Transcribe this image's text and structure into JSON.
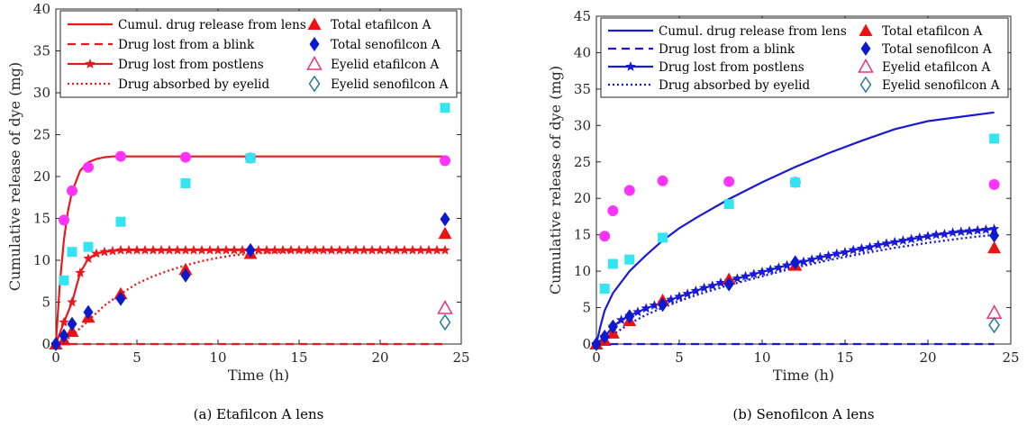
{
  "colors": {
    "eta_model": "#e8191c",
    "seno_model": "#1a1ad6",
    "magenta": "#ff33ff",
    "cyan": "#33e5f0",
    "red_marker": "#ee1111",
    "blue_marker": "#0a1acc",
    "open_pink": "#e8347c",
    "open_teal": "#2a7a94"
  },
  "chart_data": [
    {
      "type": "line",
      "caption": "(a) Etafilcon A lens",
      "xlabel": "Time (h)",
      "ylabel": "Cumulative release of dye (mg)",
      "xlim": [
        0,
        25
      ],
      "ylim": [
        0,
        40
      ],
      "xticks": [
        "0",
        "5",
        "10",
        "15",
        "20",
        "25"
      ],
      "yticks": [
        "0",
        "5",
        "10",
        "15",
        "20",
        "25",
        "30",
        "35",
        "40"
      ],
      "grid": false,
      "legend_position": "top",
      "legend": [
        "Cumul. drug release from lens",
        "Drug lost from a blink",
        "Drug lost from postlens",
        "Drug absorbed by eyelid",
        "Total etafilcon A",
        "Total senofilcon A",
        "Eyelid etafilcon A",
        "Eyelid senofilcon A"
      ],
      "model_series": [
        {
          "name": "Cumul. drug release from lens",
          "style": "solid",
          "x": [
            0,
            0.25,
            0.5,
            0.75,
            1,
            1.5,
            2,
            2.5,
            3,
            3.5,
            4,
            5,
            6,
            8,
            10,
            12,
            16,
            20,
            24
          ],
          "y": [
            0,
            7.3,
            12.5,
            15.9,
            18.2,
            20.7,
            21.7,
            22.1,
            22.3,
            22.4,
            22.4,
            22.4,
            22.4,
            22.4,
            22.4,
            22.4,
            22.4,
            22.4,
            22.4
          ]
        },
        {
          "name": "Drug lost from a blink",
          "style": "dashed",
          "x": [
            0,
            24
          ],
          "y": [
            0,
            0
          ]
        },
        {
          "name": "Drug lost from postlens",
          "style": "star",
          "x": [
            0,
            0.5,
            1,
            1.5,
            2,
            2.5,
            3,
            3.5,
            4,
            4.5,
            5,
            5.5,
            6,
            6.5,
            7,
            7.5,
            8,
            8.5,
            9,
            9.5,
            10,
            10.5,
            11,
            11.5,
            12,
            12.5,
            13,
            13.5,
            14,
            14.5,
            15,
            15.5,
            16,
            16.5,
            17,
            17.5,
            18,
            18.5,
            19,
            19.5,
            20,
            20.5,
            21,
            21.5,
            22,
            22.5,
            23,
            23.5,
            24
          ],
          "y": [
            0,
            2.6,
            5.0,
            8.5,
            10.2,
            10.8,
            11.0,
            11.1,
            11.2,
            11.2,
            11.2,
            11.2,
            11.2,
            11.2,
            11.2,
            11.2,
            11.2,
            11.2,
            11.2,
            11.2,
            11.2,
            11.2,
            11.2,
            11.2,
            11.2,
            11.2,
            11.2,
            11.2,
            11.2,
            11.2,
            11.2,
            11.2,
            11.2,
            11.2,
            11.2,
            11.2,
            11.2,
            11.2,
            11.2,
            11.2,
            11.2,
            11.2,
            11.2,
            11.2,
            11.2,
            11.2,
            11.2,
            11.2,
            11.2
          ]
        },
        {
          "name": "Drug absorbed by eyelid",
          "style": "dotted",
          "x": [
            0,
            0.5,
            1,
            1.5,
            2,
            3,
            4,
            5,
            6,
            7,
            8,
            9,
            10,
            11,
            12,
            14,
            16,
            18,
            20,
            22,
            24
          ],
          "y": [
            0,
            0.3,
            1.0,
            1.9,
            2.8,
            4.6,
            6.0,
            7.2,
            8.1,
            8.8,
            9.4,
            9.9,
            10.3,
            10.6,
            10.8,
            11.0,
            11.1,
            11.2,
            11.2,
            11.2,
            11.2
          ]
        }
      ],
      "markers": [
        {
          "name": "Total etafilcon A",
          "shape": "triangle-filled",
          "x": [
            0,
            0.5,
            1,
            2,
            4,
            8,
            12,
            24
          ],
          "y": [
            0,
            0.5,
            1.5,
            3.2,
            6.0,
            8.9,
            10.8,
            13.2
          ]
        },
        {
          "name": "Total senofilcon A",
          "shape": "diamond-filled",
          "x": [
            0,
            0.5,
            1,
            2,
            4,
            8,
            12,
            24
          ],
          "y": [
            0,
            1.0,
            2.4,
            3.8,
            5.4,
            8.2,
            11.2,
            14.9
          ]
        },
        {
          "name": "Eyelid etafilcon A",
          "shape": "triangle-open",
          "x": [
            24
          ],
          "y": [
            4.3
          ]
        },
        {
          "name": "Eyelid senofilcon A",
          "shape": "diamond-open",
          "x": [
            24
          ],
          "y": [
            2.6
          ]
        },
        {
          "name": "",
          "shape": "circle-filled",
          "color": "magenta",
          "x": [
            0.5,
            1,
            2,
            4,
            8,
            12,
            24
          ],
          "y": [
            14.8,
            18.3,
            21.1,
            22.4,
            22.3,
            22.2,
            21.9
          ]
        },
        {
          "name": "",
          "shape": "square-filled",
          "color": "cyan",
          "x": [
            0.5,
            1,
            2,
            4,
            8,
            12,
            24
          ],
          "y": [
            7.6,
            11.0,
            11.6,
            14.6,
            19.2,
            22.2,
            28.2
          ]
        }
      ]
    },
    {
      "type": "line",
      "caption": "(b) Senofilcon A lens",
      "xlabel": "Time (h)",
      "ylabel": "Cumulative release of dye (mg)",
      "xlim": [
        0,
        25
      ],
      "ylim": [
        0,
        45
      ],
      "xticks": [
        "0",
        "5",
        "10",
        "15",
        "20",
        "25"
      ],
      "yticks": [
        "0",
        "5",
        "10",
        "15",
        "20",
        "25",
        "30",
        "35",
        "40",
        "45"
      ],
      "grid": false,
      "legend_position": "top",
      "legend": [
        "Cumul. drug release from lens",
        "Drug lost from a blink",
        "Drug lost from postlens",
        "Drug absorbed by eyelid",
        "Total etafilcon A",
        "Total senofilcon A",
        "Eyelid etafilcon A",
        "Eyelid senofilcon A"
      ],
      "model_series": [
        {
          "name": "Cumul. drug release from lens",
          "style": "solid",
          "x": [
            0,
            0.25,
            0.5,
            1,
            2,
            3,
            4,
            5,
            6,
            8,
            10,
            12,
            14,
            16,
            18,
            20,
            22,
            24
          ],
          "y": [
            0,
            2.5,
            4.6,
            7.0,
            10.0,
            12.2,
            14.2,
            15.9,
            17.3,
            19.9,
            22.2,
            24.3,
            26.2,
            27.9,
            29.5,
            30.6,
            31.2,
            31.8
          ]
        },
        {
          "name": "Drug lost from a blink",
          "style": "dashed",
          "x": [
            0,
            24
          ],
          "y": [
            0,
            0
          ]
        },
        {
          "name": "Drug lost from postlens",
          "style": "star",
          "x": [
            0,
            0.5,
            1,
            1.5,
            2,
            2.5,
            3,
            3.5,
            4,
            4.5,
            5,
            5.5,
            6,
            6.5,
            7,
            7.5,
            8,
            8.5,
            9,
            9.5,
            10,
            10.5,
            11,
            11.5,
            12,
            12.5,
            13,
            13.5,
            14,
            14.5,
            15,
            15.5,
            16,
            16.5,
            17,
            17.5,
            18,
            18.5,
            19,
            19.5,
            20,
            20.5,
            21,
            21.5,
            22,
            22.5,
            23,
            23.5,
            24
          ],
          "y": [
            0,
            1.0,
            2.4,
            3.3,
            3.9,
            4.4,
            4.9,
            5.3,
            5.7,
            6.1,
            6.5,
            6.9,
            7.3,
            7.7,
            8.0,
            8.4,
            8.7,
            9.0,
            9.3,
            9.6,
            9.9,
            10.2,
            10.5,
            10.8,
            11.1,
            11.3,
            11.6,
            11.9,
            12.1,
            12.4,
            12.6,
            12.9,
            13.1,
            13.3,
            13.6,
            13.8,
            14.0,
            14.2,
            14.4,
            14.6,
            14.8,
            15.0,
            15.1,
            15.3,
            15.4,
            15.5,
            15.6,
            15.7,
            15.8
          ]
        },
        {
          "name": "Drug absorbed by eyelid",
          "style": "dotted",
          "x": [
            0,
            0.5,
            1,
            2,
            3,
            4,
            5,
            6,
            8,
            10,
            12,
            14,
            16,
            18,
            20,
            22,
            24
          ],
          "y": [
            0,
            0.4,
            1.3,
            2.8,
            4.0,
            5.0,
            5.9,
            6.7,
            8.1,
            9.3,
            10.5,
            11.5,
            12.4,
            13.2,
            13.9,
            14.5,
            15.0
          ]
        }
      ],
      "markers": [
        {
          "name": "Total etafilcon A",
          "shape": "triangle-filled",
          "x": [
            0,
            0.5,
            1,
            2,
            4,
            8,
            12,
            24
          ],
          "y": [
            0,
            0.5,
            1.5,
            3.2,
            6.0,
            8.9,
            10.8,
            13.2
          ]
        },
        {
          "name": "Total senofilcon A",
          "shape": "diamond-filled",
          "x": [
            0,
            0.5,
            1,
            2,
            4,
            8,
            12,
            24
          ],
          "y": [
            0,
            1.0,
            2.4,
            3.8,
            5.4,
            8.2,
            11.2,
            14.9
          ]
        },
        {
          "name": "Eyelid etafilcon A",
          "shape": "triangle-open",
          "x": [
            24
          ],
          "y": [
            4.3
          ]
        },
        {
          "name": "Eyelid senofilcon A",
          "shape": "diamond-open",
          "x": [
            24
          ],
          "y": [
            2.6
          ]
        },
        {
          "name": "",
          "shape": "circle-filled",
          "color": "magenta",
          "x": [
            0.5,
            1,
            2,
            4,
            8,
            12,
            24
          ],
          "y": [
            14.8,
            18.3,
            21.1,
            22.4,
            22.3,
            22.2,
            21.9
          ]
        },
        {
          "name": "",
          "shape": "square-filled",
          "color": "cyan",
          "x": [
            0.5,
            1,
            2,
            4,
            8,
            12,
            24
          ],
          "y": [
            7.6,
            11.0,
            11.6,
            14.6,
            19.2,
            22.2,
            28.2
          ]
        }
      ]
    }
  ]
}
